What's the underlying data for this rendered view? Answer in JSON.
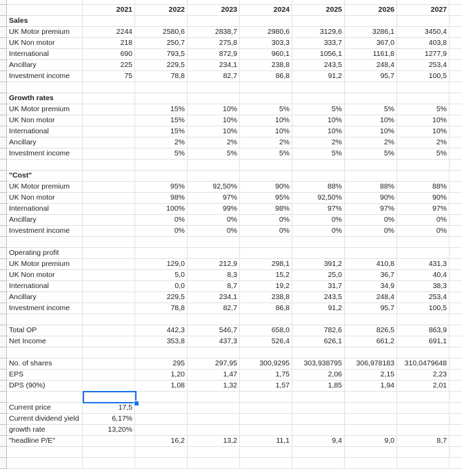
{
  "accent_color": "#1a73e8",
  "selected_cell": {
    "row": 36,
    "column": "2021"
  },
  "rows": [
    {
      "label": "",
      "values": [
        "",
        "",
        "",
        "",
        "",
        "",
        "",
        ""
      ]
    },
    {
      "label": "",
      "bold": true,
      "values": [
        "2021",
        "2022",
        "2023",
        "2024",
        "2025",
        "2026",
        "2027",
        ""
      ]
    },
    {
      "label": "Sales",
      "bold": true,
      "values": [
        "",
        "",
        "",
        "",
        "",
        "",
        "",
        ""
      ]
    },
    {
      "label": "UK Motor premium",
      "values": [
        "2244",
        "2580,6",
        "2838,7",
        "2980,6",
        "3129,6",
        "3286,1",
        "3450,4",
        ""
      ]
    },
    {
      "label": "UK Non motor",
      "values": [
        "218",
        "250,7",
        "275,8",
        "303,3",
        "333,7",
        "367,0",
        "403,8",
        ""
      ]
    },
    {
      "label": "International",
      "values": [
        "690",
        "793,5",
        "872,9",
        "960,1",
        "1056,1",
        "1161,8",
        "1277,9",
        ""
      ]
    },
    {
      "label": "Ancillary",
      "values": [
        "225",
        "229,5",
        "234,1",
        "238,8",
        "243,5",
        "248,4",
        "253,4",
        ""
      ]
    },
    {
      "label": "Investment income",
      "values": [
        "75",
        "78,8",
        "82,7",
        "86,8",
        "91,2",
        "95,7",
        "100,5",
        ""
      ]
    },
    {
      "label": "",
      "values": [
        "",
        "",
        "",
        "",
        "",
        "",
        "",
        ""
      ]
    },
    {
      "label": "Growth rates",
      "bold": true,
      "values": [
        "",
        "",
        "",
        "",
        "",
        "",
        "",
        ""
      ]
    },
    {
      "label": "UK Motor premium",
      "values": [
        "",
        "15%",
        "10%",
        "5%",
        "5%",
        "5%",
        "5%",
        ""
      ]
    },
    {
      "label": "UK Non motor",
      "values": [
        "",
        "15%",
        "10%",
        "10%",
        "10%",
        "10%",
        "10%",
        ""
      ]
    },
    {
      "label": "International",
      "values": [
        "",
        "15%",
        "10%",
        "10%",
        "10%",
        "10%",
        "10%",
        ""
      ]
    },
    {
      "label": "Ancillary",
      "values": [
        "",
        "2%",
        "2%",
        "2%",
        "2%",
        "2%",
        "2%",
        ""
      ]
    },
    {
      "label": "Investment income",
      "values": [
        "",
        "5%",
        "5%",
        "5%",
        "5%",
        "5%",
        "5%",
        ""
      ]
    },
    {
      "label": "",
      "values": [
        "",
        "",
        "",
        "",
        "",
        "",
        "",
        ""
      ]
    },
    {
      "label": "\"Cost\"",
      "bold": true,
      "values": [
        "",
        "",
        "",
        "",
        "",
        "",
        "",
        ""
      ]
    },
    {
      "label": "UK Motor premium",
      "values": [
        "",
        "95%",
        "92,50%",
        "90%",
        "88%",
        "88%",
        "88%",
        ""
      ]
    },
    {
      "label": "UK Non motor",
      "values": [
        "",
        "98%",
        "97%",
        "95%",
        "92,50%",
        "90%",
        "90%",
        ""
      ]
    },
    {
      "label": "International",
      "values": [
        "",
        "100%",
        "99%",
        "98%",
        "97%",
        "97%",
        "97%",
        ""
      ]
    },
    {
      "label": "Ancillary",
      "values": [
        "",
        "0%",
        "0%",
        "0%",
        "0%",
        "0%",
        "0%",
        ""
      ]
    },
    {
      "label": "Investment income",
      "values": [
        "",
        "0%",
        "0%",
        "0%",
        "0%",
        "0%",
        "0%",
        ""
      ]
    },
    {
      "label": "",
      "values": [
        "",
        "",
        "",
        "",
        "",
        "",
        "",
        ""
      ]
    },
    {
      "label": "Operating profit",
      "values": [
        "",
        "",
        "",
        "",
        "",
        "",
        "",
        ""
      ]
    },
    {
      "label": "UK Motor premium",
      "values": [
        "",
        "129,0",
        "212,9",
        "298,1",
        "391,2",
        "410,8",
        "431,3",
        ""
      ]
    },
    {
      "label": "UK Non motor",
      "values": [
        "",
        "5,0",
        "8,3",
        "15,2",
        "25,0",
        "36,7",
        "40,4",
        ""
      ]
    },
    {
      "label": "International",
      "values": [
        "",
        "0,0",
        "8,7",
        "19,2",
        "31,7",
        "34,9",
        "38,3",
        ""
      ]
    },
    {
      "label": "Ancillary",
      "values": [
        "",
        "229,5",
        "234,1",
        "238,8",
        "243,5",
        "248,4",
        "253,4",
        ""
      ]
    },
    {
      "label": "Investment income",
      "values": [
        "",
        "78,8",
        "82,7",
        "86,8",
        "91,2",
        "95,7",
        "100,5",
        ""
      ]
    },
    {
      "label": "",
      "values": [
        "",
        "",
        "",
        "",
        "",
        "",
        "",
        ""
      ]
    },
    {
      "label": "Total OP",
      "values": [
        "",
        "442,3",
        "546,7",
        "658,0",
        "782,6",
        "826,5",
        "863,9",
        ""
      ]
    },
    {
      "label": "Net Income",
      "values": [
        "",
        "353,8",
        "437,3",
        "526,4",
        "626,1",
        "661,2",
        "691,1",
        ""
      ]
    },
    {
      "label": "",
      "values": [
        "",
        "",
        "",
        "",
        "",
        "",
        "",
        ""
      ]
    },
    {
      "label": "No. of shares",
      "values": [
        "",
        "295",
        "297,95",
        "300,9295",
        "303,938795",
        "306,978183",
        "310,0479648",
        ""
      ]
    },
    {
      "label": "EPS",
      "values": [
        "",
        "1,20",
        "1,47",
        "1,75",
        "2,06",
        "2,15",
        "2,23",
        ""
      ]
    },
    {
      "label": "DPS (90%)",
      "values": [
        "",
        "1,08",
        "1,32",
        "1,57",
        "1,85",
        "1,94",
        "2,01",
        ""
      ]
    },
    {
      "label": "",
      "values": [
        "",
        "",
        "",
        "",
        "",
        "",
        "",
        ""
      ]
    },
    {
      "label": "Current price",
      "values": [
        "17,5",
        "",
        "",
        "",
        "",
        "",
        "",
        ""
      ]
    },
    {
      "label": "Current dividend yield",
      "values": [
        "6,17%",
        "",
        "",
        "",
        "",
        "",
        "",
        ""
      ]
    },
    {
      "label": "growth rate",
      "values": [
        "13,20%",
        "",
        "",
        "",
        "",
        "",
        "",
        ""
      ]
    },
    {
      "label": "\"headline P/E\"",
      "values": [
        "",
        "16,2",
        "13,2",
        "11,1",
        "9,4",
        "9,0",
        "8,7",
        ""
      ]
    },
    {
      "label": "",
      "values": [
        "",
        "",
        "",
        "",
        "",
        "",
        "",
        ""
      ]
    },
    {
      "label": "",
      "values": [
        "",
        "",
        "",
        "",
        "",
        "",
        "",
        ""
      ]
    }
  ]
}
